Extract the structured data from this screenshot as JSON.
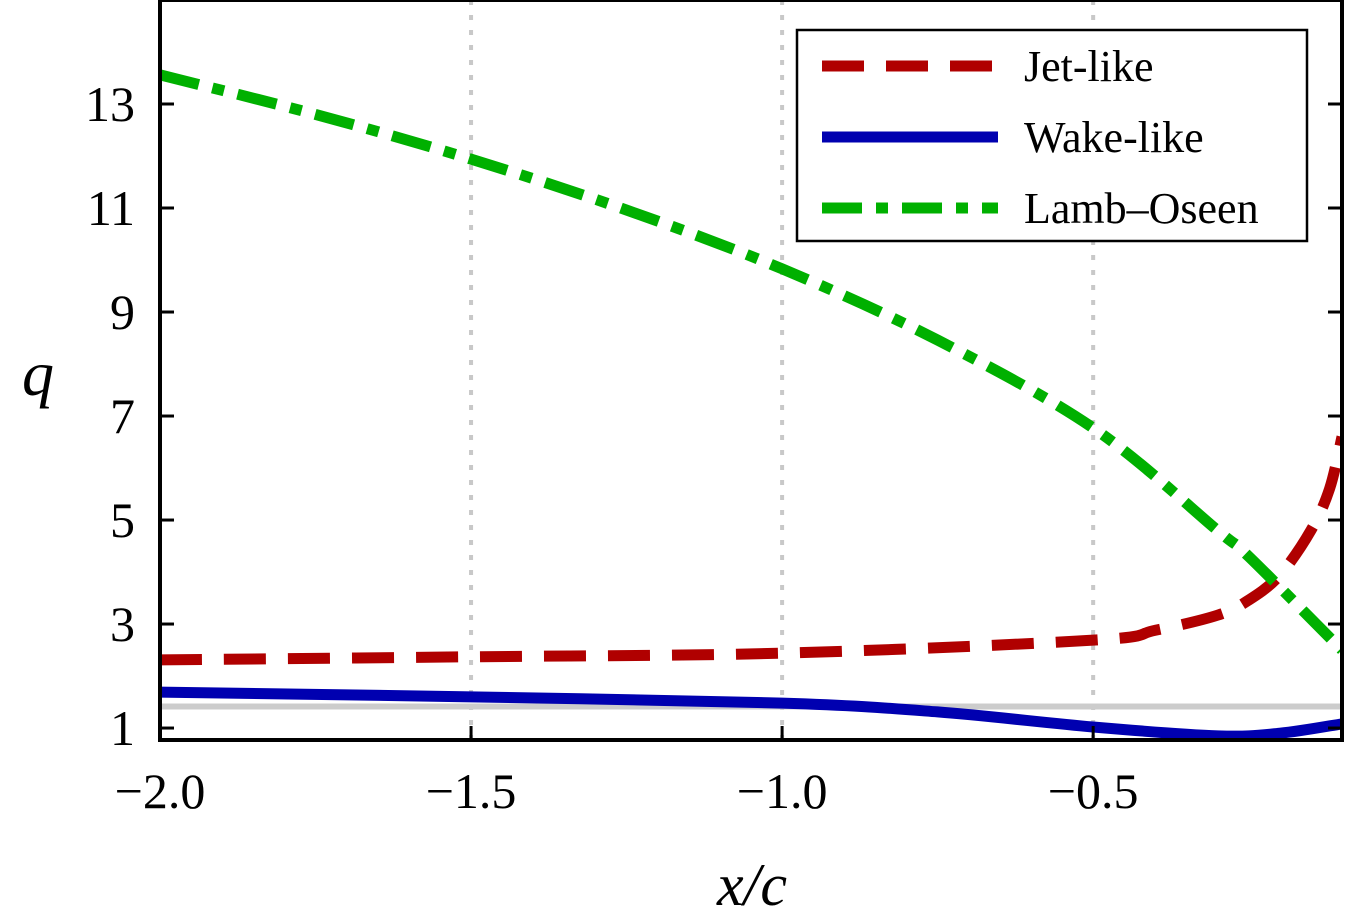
{
  "chart_data": {
    "type": "line",
    "xlabel": "x/c",
    "ylabel": "q",
    "xlim": [
      -2.0,
      -0.1
    ],
    "ylim": [
      0.77,
      15
    ],
    "xticks": [
      -2.0,
      -1.5,
      -1.0,
      -0.5
    ],
    "xtick_labels": [
      "−2.0",
      "−1.5",
      "−1.0",
      "−0.5"
    ],
    "yticks": [
      1,
      3,
      5,
      7,
      9,
      11,
      13
    ],
    "ytick_labels": [
      "1",
      "3",
      "5",
      "7",
      "9",
      "11",
      "13"
    ],
    "vertical_grid": "dotted gray at x ticks",
    "reference_line": {
      "y": 1.414,
      "color": "#cccccc"
    },
    "legend_position": "top-right",
    "series": [
      {
        "name": "Jet-like",
        "color": "#b00000",
        "style": "dashed",
        "x": [
          -2.0,
          -1.5,
          -1.0,
          -0.5,
          -0.4,
          -0.3,
          -0.25,
          -0.2,
          -0.15,
          -0.12,
          -0.1
        ],
        "y": [
          2.31,
          2.37,
          2.44,
          2.69,
          2.88,
          3.17,
          3.46,
          3.94,
          4.8,
          5.6,
          6.6
        ]
      },
      {
        "name": "Wake-like",
        "color": "#0000b0",
        "style": "solid",
        "x": [
          -2.0,
          -1.5,
          -1.0,
          -0.75,
          -0.5,
          -0.3,
          -0.2,
          -0.1
        ],
        "y": [
          1.69,
          1.6,
          1.48,
          1.31,
          1.02,
          0.85,
          0.9,
          1.08
        ]
      },
      {
        "name": "Lamb–Oseen",
        "color": "#00b000",
        "style": "dashdot",
        "x": [
          -2.0,
          -1.75,
          -1.5,
          -1.25,
          -1.0,
          -0.75,
          -0.5,
          -0.3,
          -0.25,
          -0.1
        ],
        "y": [
          13.56,
          12.8,
          11.94,
          10.96,
          9.83,
          8.46,
          6.77,
          4.8,
          4.3,
          2.5
        ]
      }
    ]
  }
}
